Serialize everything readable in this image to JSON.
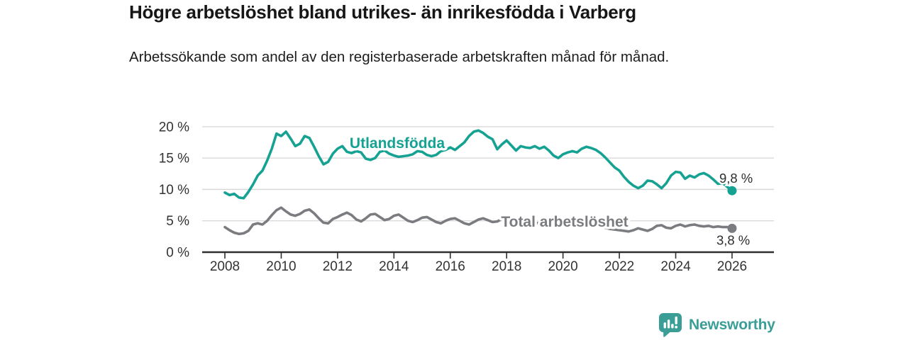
{
  "header": {
    "title": "Högre arbetslöshet bland utrikes- än inrikesfödda i Varberg",
    "subtitle": "Arbetssökande som andel av den registerbaserade arbetskraften månad för månad."
  },
  "footer": {
    "brand": "Newsworthy",
    "brand_color": "#3a9e97",
    "logo_icon": "bar-chart-speech-bubble-icon"
  },
  "chart_data": {
    "type": "line",
    "title": "Högre arbetslöshet bland utrikes- än inrikesfödda i Varberg",
    "subtitle": "Arbetssökande som andel av den registerbaserade arbetskraften månad för månad.",
    "x_start_year": 2008,
    "x_step_years": 0.1666667,
    "x_end_year": 2026,
    "ylim": [
      0,
      21
    ],
    "xlim": [
      2007.2,
      2027.5
    ],
    "grid": "horizontal-only",
    "axis_color": "#2f2f2f",
    "grid_color": "#d6d6d6",
    "tick_label_color": "#333333",
    "y_ticks": [
      {
        "value": 0,
        "label": "0 %"
      },
      {
        "value": 5,
        "label": "5 %"
      },
      {
        "value": 10,
        "label": "10 %"
      },
      {
        "value": 15,
        "label": "15 %"
      },
      {
        "value": 20,
        "label": "20 %"
      }
    ],
    "x_ticks": [
      {
        "value": 2008,
        "label": "2008"
      },
      {
        "value": 2010,
        "label": "2010"
      },
      {
        "value": 2012,
        "label": "2012"
      },
      {
        "value": 2014,
        "label": "2014"
      },
      {
        "value": 2016,
        "label": "2016"
      },
      {
        "value": 2018,
        "label": "2018"
      },
      {
        "value": 2020,
        "label": "2020"
      },
      {
        "value": 2022,
        "label": "2022"
      },
      {
        "value": 2024,
        "label": "2024"
      },
      {
        "value": 2026,
        "label": "2026"
      }
    ],
    "series": [
      {
        "name": "Utlandsfödda",
        "label_text": "Utlandsfödda",
        "end_label": "9,8 %",
        "end_value": 9.8,
        "color": "#15a292",
        "dashed_tail": true,
        "values": [
          9.5,
          9.1,
          9.3,
          8.7,
          8.6,
          9.6,
          10.8,
          12.2,
          13.0,
          14.6,
          16.5,
          18.9,
          18.5,
          19.2,
          18.1,
          16.9,
          17.3,
          18.5,
          18.2,
          16.8,
          15.3,
          14.0,
          14.4,
          15.7,
          16.5,
          16.9,
          16.0,
          15.8,
          16.1,
          15.9,
          14.9,
          14.7,
          15.0,
          16.0,
          16.2,
          15.7,
          15.4,
          15.2,
          15.3,
          15.4,
          15.6,
          16.1,
          16.0,
          15.5,
          15.3,
          15.5,
          16.1,
          16.3,
          16.7,
          16.3,
          16.9,
          17.5,
          18.5,
          19.2,
          19.4,
          19.0,
          18.4,
          18.0,
          16.4,
          17.2,
          17.8,
          17.0,
          16.2,
          16.9,
          16.7,
          16.6,
          16.9,
          16.5,
          16.8,
          16.2,
          15.4,
          15.0,
          15.6,
          15.9,
          16.1,
          15.9,
          16.5,
          16.8,
          16.6,
          16.3,
          15.8,
          15.1,
          14.3,
          13.5,
          13.0,
          12.0,
          11.2,
          10.6,
          10.2,
          10.6,
          11.4,
          11.3,
          10.8,
          10.2,
          11.0,
          12.2,
          12.8,
          12.7,
          11.7,
          12.2,
          11.9,
          12.4,
          12.6,
          12.2,
          11.6,
          10.9,
          11.0,
          10.4,
          9.8
        ]
      },
      {
        "name": "Total arbetslöshet",
        "label_text": "Total arbetslöshet",
        "end_label": "3,8 %",
        "end_value": 3.8,
        "color": "#7b7c80",
        "dashed_tail": false,
        "values": [
          4.0,
          3.5,
          3.1,
          2.9,
          3.0,
          3.4,
          4.4,
          4.6,
          4.4,
          5.0,
          5.9,
          6.7,
          7.1,
          6.5,
          6.0,
          5.8,
          6.1,
          6.6,
          6.8,
          6.2,
          5.4,
          4.7,
          4.6,
          5.3,
          5.6,
          6.0,
          6.3,
          5.9,
          5.2,
          4.9,
          5.4,
          6.0,
          6.1,
          5.6,
          5.1,
          5.3,
          5.8,
          6.0,
          5.5,
          5.0,
          4.8,
          5.1,
          5.5,
          5.6,
          5.2,
          4.8,
          4.6,
          5.0,
          5.3,
          5.4,
          5.0,
          4.6,
          4.4,
          4.8,
          5.2,
          5.4,
          5.1,
          4.8,
          4.9,
          5.3,
          5.2,
          4.9,
          4.7,
          4.9,
          5.1,
          4.9,
          4.6,
          4.7,
          4.9,
          4.7,
          4.5,
          4.4,
          4.6,
          4.9,
          5.2,
          5.1,
          4.9,
          4.8,
          4.7,
          4.5,
          4.2,
          3.9,
          3.7,
          3.6,
          3.5,
          3.4,
          3.3,
          3.5,
          3.8,
          3.6,
          3.4,
          3.7,
          4.2,
          4.3,
          3.9,
          3.8,
          4.2,
          4.4,
          4.1,
          4.3,
          4.4,
          4.2,
          4.1,
          4.2,
          4.0,
          4.1,
          4.0,
          4.0,
          3.8
        ]
      }
    ],
    "annotation_text_color": "#2e2e2e",
    "legend_position": "inline-labels"
  }
}
